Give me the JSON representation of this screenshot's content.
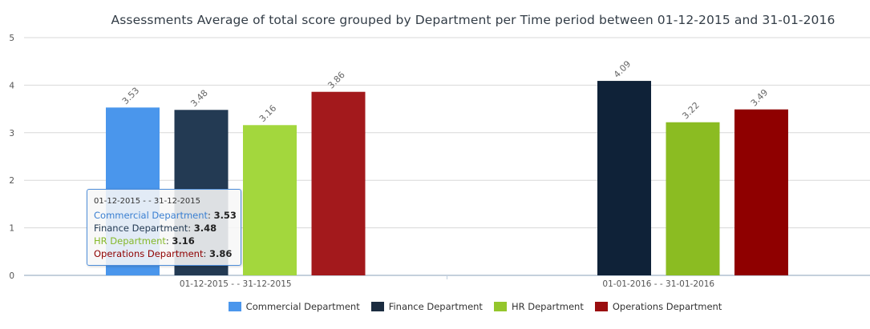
{
  "chart_data": {
    "type": "bar",
    "title": "Assessments Average of total score grouped by Department per Time period between 01-12-2015 and 31-01-2016",
    "categories": [
      "01-12-2015 - - 31-12-2015",
      "01-01-2016 - - 31-01-2016"
    ],
    "series": [
      {
        "name": "Commercial Department",
        "color": "#4a96ec",
        "values": [
          3.53,
          null
        ],
        "labels": [
          "3.53",
          ""
        ]
      },
      {
        "name": "Finance Department",
        "color": "#233a53",
        "values": [
          3.48,
          4.09
        ],
        "labels": [
          "3.48",
          "4.09"
        ]
      },
      {
        "name": "HR Department",
        "color": "#a3d73d",
        "values": [
          3.16,
          3.22
        ],
        "labels": [
          "3.16",
          "3.22"
        ]
      },
      {
        "name": "Operations Department",
        "color": "#a3191c",
        "values": [
          3.86,
          3.49
        ],
        "labels": [
          "3.86",
          "3.49"
        ]
      }
    ],
    "second_group_colors": [
      "#4a96ec",
      "#0f2238",
      "#8bbc22",
      "#8f0000"
    ],
    "ylim": [
      0,
      5
    ],
    "yticks": [
      0,
      1,
      2,
      3,
      4,
      5
    ],
    "grid": true,
    "legend": "bottom"
  },
  "tooltip": {
    "header": "01-12-2015 - - 31-12-2015",
    "rows": [
      {
        "name": "Commercial Department",
        "value": "3.53"
      },
      {
        "name": "Finance Department",
        "value": "3.48"
      },
      {
        "name": "HR Department",
        "value": "3.16"
      },
      {
        "name": "Operations Department",
        "value": "3.86"
      }
    ]
  }
}
